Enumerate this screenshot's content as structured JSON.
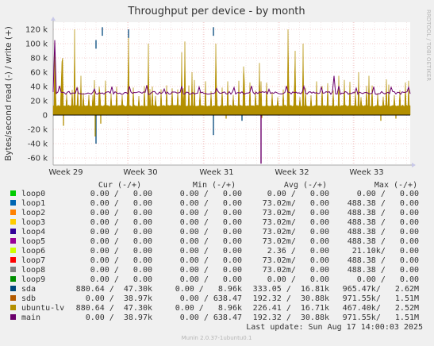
{
  "chart_data": {
    "type": "line",
    "title": "Throughput per device - by month",
    "ylabel": "Bytes/second read (-) / write (+)",
    "y_ticks": [
      "120 k",
      "100 k",
      "80 k",
      "60 k",
      "40 k",
      "20 k",
      "0",
      "-20 k",
      "-40 k",
      "-60 k"
    ],
    "y_tick_values": [
      120000,
      100000,
      80000,
      60000,
      40000,
      20000,
      0,
      -20000,
      -40000,
      -60000
    ],
    "ylim": [
      -70000,
      130000
    ],
    "x_ticks": [
      "Week 29",
      "Week 30",
      "Week 31",
      "Week 32",
      "Week 33"
    ],
    "grid": true,
    "side_label": "RRDTOOL / TOBI OETIKER",
    "legend_headers": {
      "cur": "Cur (-/+)",
      "min": "Min (-/+)",
      "avg": "Avg (-/+)",
      "max": "Max (-/+)"
    },
    "series": [
      {
        "name": "loop0",
        "color": "#00cc00",
        "cur": "0.00 /   0.00",
        "min": "0.00 /   0.00",
        "avg": "0.00 /   0.00",
        "max": "0.00 /   0.00"
      },
      {
        "name": "loop1",
        "color": "#0066b3",
        "cur": "0.00 /   0.00",
        "min": "0.00 /   0.00",
        "avg": "73.02m/   0.00",
        "max": "488.38 /   0.00"
      },
      {
        "name": "loop2",
        "color": "#ff8000",
        "cur": "0.00 /   0.00",
        "min": "0.00 /   0.00",
        "avg": "73.02m/   0.00",
        "max": "488.38 /   0.00"
      },
      {
        "name": "loop3",
        "color": "#ffcc00",
        "cur": "0.00 /   0.00",
        "min": "0.00 /   0.00",
        "avg": "73.02m/   0.00",
        "max": "488.38 /   0.00"
      },
      {
        "name": "loop4",
        "color": "#330099",
        "cur": "0.00 /   0.00",
        "min": "0.00 /   0.00",
        "avg": "73.02m/   0.00",
        "max": "488.38 /   0.00"
      },
      {
        "name": "loop5",
        "color": "#990099",
        "cur": "0.00 /   0.00",
        "min": "0.00 /   0.00",
        "avg": "73.02m/   0.00",
        "max": "488.38 /   0.00"
      },
      {
        "name": "loop6",
        "color": "#ccff00",
        "cur": "0.00 /   0.00",
        "min": "0.00 /   0.00",
        "avg": "2.36 /   0.00",
        "max": "21.10k/   0.00"
      },
      {
        "name": "loop7",
        "color": "#ff0000",
        "cur": "0.00 /   0.00",
        "min": "0.00 /   0.00",
        "avg": "73.02m/   0.00",
        "max": "488.38 /   0.00"
      },
      {
        "name": "loop8",
        "color": "#808080",
        "cur": "0.00 /   0.00",
        "min": "0.00 /   0.00",
        "avg": "73.02m/   0.00",
        "max": "488.38 /   0.00"
      },
      {
        "name": "loop9",
        "color": "#008f00",
        "cur": "0.00 /   0.00",
        "min": "0.00 /   0.00",
        "avg": "0.00 /   0.00",
        "max": "0.00 /   0.00"
      },
      {
        "name": "sda",
        "color": "#00487d",
        "cur": "880.64 /  47.30k",
        "min": "0.00 /   8.96k",
        "avg": "333.05 /  16.81k",
        "max": "965.47k/   2.62M"
      },
      {
        "name": "sdb",
        "color": "#b35a00",
        "cur": "0.00 /  38.97k",
        "min": "0.00 / 638.47",
        "avg": "192.32 /  30.88k",
        "max": "971.55k/   1.51M"
      },
      {
        "name": "ubuntu-lv",
        "color": "#b38f00",
        "cur": "880.64 /  47.30k",
        "min": "0.00 /   8.96k",
        "avg": "226.41 /  16.71k",
        "max": "467.40k/   2.52M"
      },
      {
        "name": "main",
        "color": "#6b006b",
        "cur": "0.00 /  38.97k",
        "min": "0.00 / 638.47",
        "avg": "192.32 /  30.88k",
        "max": "971.55k/   1.51M"
      }
    ],
    "last_update": "Last update: Sun Aug 17 14:00:03 2025",
    "footer": "Munin 2.0.37-1ubuntu0.1"
  }
}
